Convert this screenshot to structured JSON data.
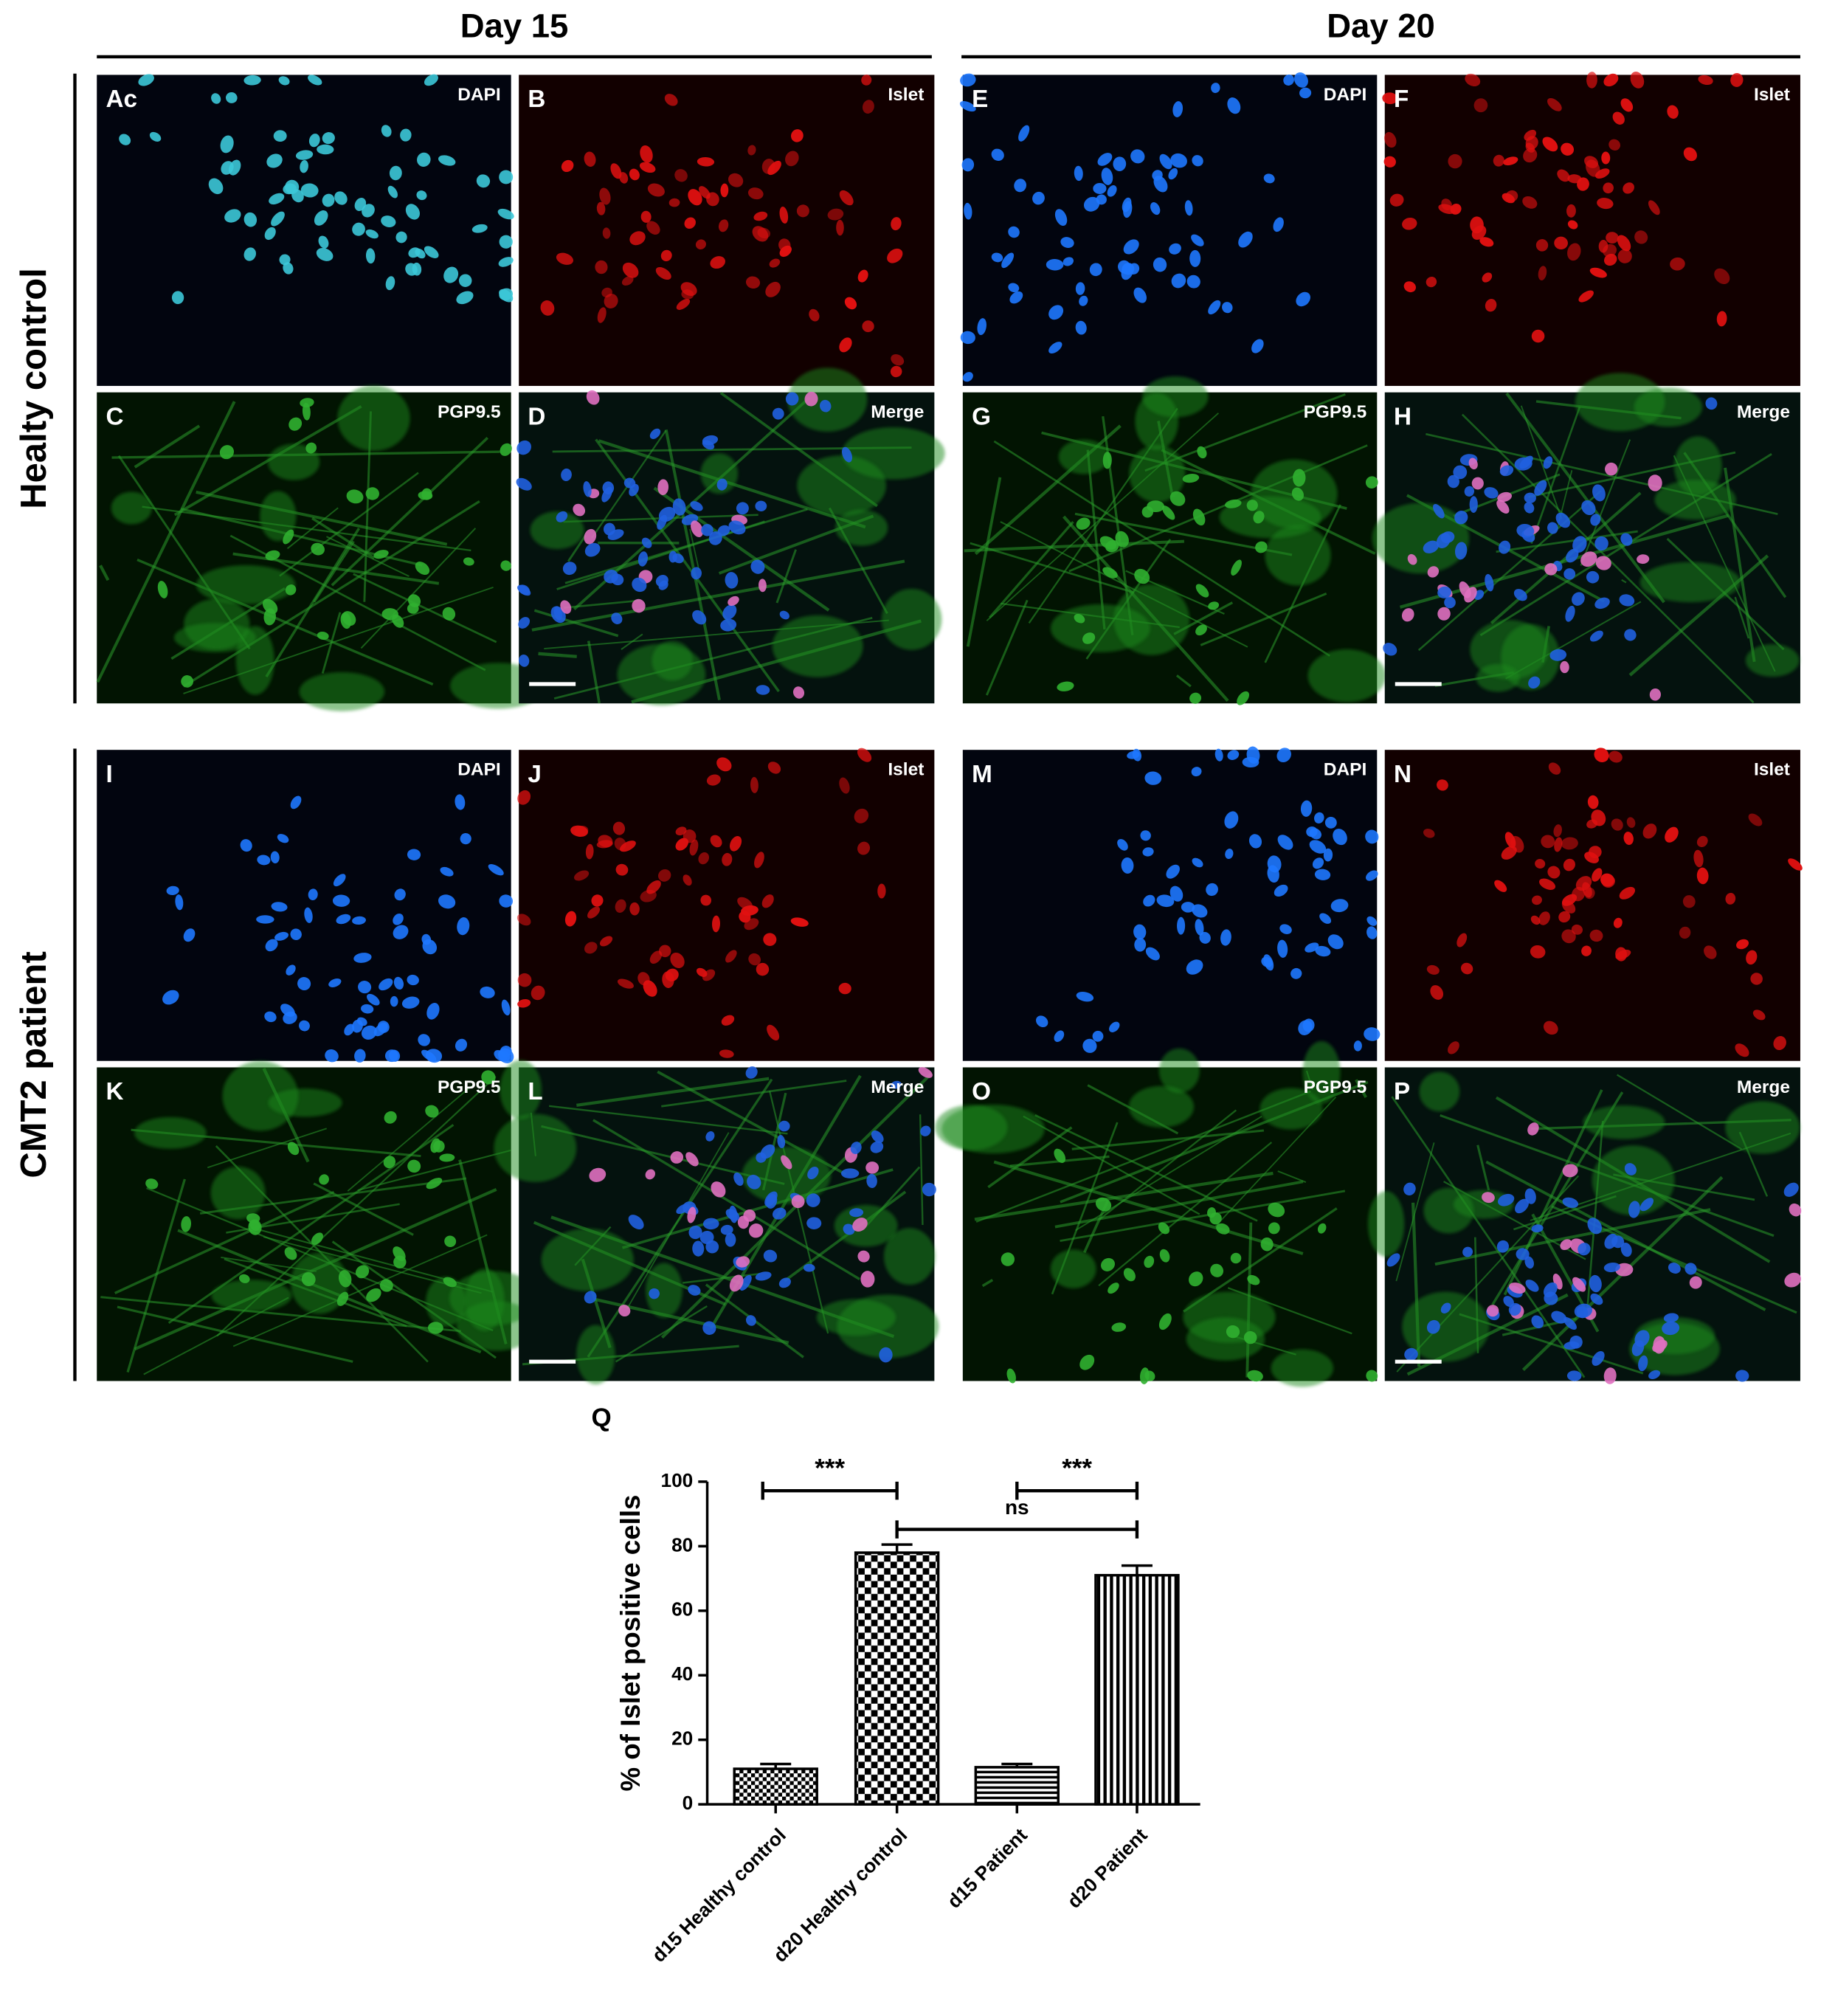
{
  "columns": [
    {
      "title": "Day 15"
    },
    {
      "title": "Day 20"
    }
  ],
  "rows": [
    {
      "label": "Healty control"
    },
    {
      "label": "CMT2 patient"
    }
  ],
  "panels": [
    {
      "letter": "Ac",
      "channel": "DAPI"
    },
    {
      "letter": "B",
      "channel": "Islet"
    },
    {
      "letter": "C",
      "channel": "PGP9.5"
    },
    {
      "letter": "D",
      "channel": "Merge"
    },
    {
      "letter": "E",
      "channel": "DAPI"
    },
    {
      "letter": "F",
      "channel": "Islet"
    },
    {
      "letter": "G",
      "channel": "PGP9.5"
    },
    {
      "letter": "H",
      "channel": "Merge"
    },
    {
      "letter": "I",
      "channel": "DAPI"
    },
    {
      "letter": "J",
      "channel": "Islet"
    },
    {
      "letter": "K",
      "channel": "PGP9.5"
    },
    {
      "letter": "L",
      "channel": "Merge"
    },
    {
      "letter": "M",
      "channel": "DAPI"
    },
    {
      "letter": "N",
      "channel": "Islet"
    },
    {
      "letter": "O",
      "channel": "PGP9.5"
    },
    {
      "letter": "P",
      "channel": "Merge"
    }
  ],
  "chart_data": {
    "type": "bar",
    "panel": "Q",
    "ylabel": "% of Islet positive cells",
    "categories": [
      "d15 Healthy control",
      "d20 Healthy control",
      "d15 Patient",
      "d20 Patient"
    ],
    "values": [
      11,
      78,
      11.5,
      71
    ],
    "errors": [
      1.5,
      2.5,
      1,
      3
    ],
    "patterns": [
      "small-check",
      "check",
      "hstripe",
      "vstripe"
    ],
    "color": "#000000",
    "ylim": [
      0,
      100
    ],
    "yticks": [
      0,
      20,
      40,
      60,
      80,
      100
    ],
    "significance": [
      {
        "from": 0,
        "to": 1,
        "label": "***"
      },
      {
        "from": 2,
        "to": 3,
        "label": "***"
      },
      {
        "from": 1,
        "to": 3,
        "label": "ns"
      }
    ]
  }
}
